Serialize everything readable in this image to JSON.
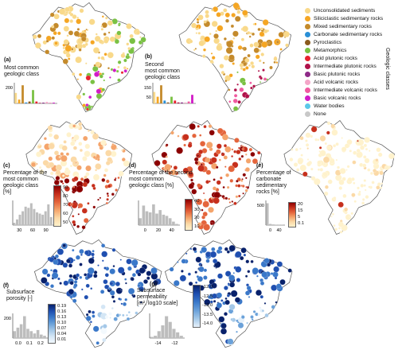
{
  "legend": {
    "title": "Geologic classes",
    "items": [
      {
        "label": "Unconsolidated sediments",
        "color": "#f9d98a"
      },
      {
        "label": "Siliciclastic sedimentary rocks",
        "color": "#f5a623"
      },
      {
        "label": "Mixed sedimentary rocks",
        "color": "#c48a2b"
      },
      {
        "label": "Carbonate sedimentary rocks",
        "color": "#2a8fd6"
      },
      {
        "label": "Pyroclastics",
        "color": "#8a5a1e"
      },
      {
        "label": "Metamorphics",
        "color": "#7ac143"
      },
      {
        "label": "Acid plutonic rocks",
        "color": "#e8222f"
      },
      {
        "label": "Intermediate plutonic rocks",
        "color": "#b0124a"
      },
      {
        "label": "Basic plutonic rocks",
        "color": "#8e2b88"
      },
      {
        "label": "Acid volcanic rocks",
        "color": "#f4a6c8"
      },
      {
        "label": "Intermediate volcanic rocks",
        "color": "#f05aa0"
      },
      {
        "label": "Basic volcanic rocks",
        "color": "#d21bc7"
      },
      {
        "label": "Water bodies",
        "color": "#5bc8e8"
      },
      {
        "label": "None",
        "color": "#c8c8c8"
      }
    ]
  },
  "panels": {
    "a": {
      "tag": "(a)",
      "text": "Most common\ngeologic class"
    },
    "b": {
      "tag": "(b)",
      "text": "Second\nmost common\ngeologic class"
    },
    "c": {
      "tag": "(c)",
      "text": "Percentage of the\nmost common\ngeologic class\n[%]"
    },
    "d": {
      "tag": "(d)",
      "text": "Percentage of the second\nmost common\ngeologic class [%]"
    },
    "e": {
      "tag": "(e)",
      "text": "Percentage of\ncarbonate\nsedimentary\nrocks [%]"
    },
    "f": {
      "tag": "(f)",
      "text": "Subsurface\nporosity [-]"
    },
    "g": {
      "tag": "(g)",
      "text": "Subsurface\npermeability\n[m², log10 scale]"
    }
  },
  "colorbars": {
    "c": {
      "ticks": [
        "90",
        "80",
        "70",
        "60",
        "50"
      ],
      "colors": [
        "#8b0000",
        "#c62f1c",
        "#e4653c",
        "#f4a46b",
        "#fbd9a6",
        "#fff2cc"
      ]
    },
    "d": {
      "ticks": [
        "40",
        "30",
        "20",
        "10"
      ],
      "colors": [
        "#8b0000",
        "#c62f1c",
        "#e4653c",
        "#f4a46b",
        "#fbd9a6",
        "#fff2cc"
      ]
    },
    "e": {
      "ticks": [
        "20",
        "15",
        "5",
        "0.1"
      ],
      "colors": [
        "#8b0000",
        "#c62f1c",
        "#e4653c",
        "#f4a46b",
        "#fbd9a6",
        "#fff2cc"
      ]
    },
    "f": {
      "ticks": [
        "0.19",
        "0.16",
        "0.13",
        "0.10",
        "0.07",
        "0.04",
        "0.01"
      ],
      "colors": [
        "#08216b",
        "#1f4fb0",
        "#3a78c9",
        "#6aa1d9",
        "#a4c8e8",
        "#d4e6f5",
        "#f3f9fd"
      ]
    },
    "g": {
      "ticks": [
        "-12.0",
        "-12.5",
        "-13.0",
        "-13.5",
        "-14.0"
      ],
      "colors": [
        "#08216b",
        "#1f4fb0",
        "#3a78c9",
        "#6aa1d9",
        "#a4c8e8",
        "#e6f1fb"
      ]
    }
  },
  "histograms": {
    "a": {
      "ytick": "200",
      "bars": [
        0.55,
        0.2,
        0.95,
        0.05,
        0.1,
        0.7,
        0.1,
        0.03,
        0.04,
        0.08,
        0.03,
        0.04
      ],
      "colors": [
        "#f9d98a",
        "#f5a623",
        "#c48a2b",
        "#2a8fd6",
        "#8a5a1e",
        "#7ac143",
        "#e8222f",
        "#b0124a",
        "#8e2b88",
        "#f4a6c8",
        "#f05aa0",
        "#d21bc7"
      ]
    },
    "b": {
      "ytick": "150",
      "ytick2": "50",
      "bars": [
        0.6,
        0.35,
        0.95,
        0.15,
        0.05,
        0.35,
        0.15,
        0.05,
        0.05,
        0.05,
        0.1,
        0.45
      ],
      "colors": [
        "#f9d98a",
        "#f5a623",
        "#c48a2b",
        "#2a8fd6",
        "#8a5a1e",
        "#7ac143",
        "#e8222f",
        "#b0124a",
        "#8e2b88",
        "#f4a6c8",
        "#f05aa0",
        "#d21bc7"
      ]
    },
    "c": {
      "xticks": [
        "30",
        "60",
        "90"
      ],
      "bars": [
        0.1,
        0.25,
        0.45,
        0.6,
        0.8,
        0.75,
        0.95,
        0.7,
        0.55,
        0.5,
        0.45,
        0.6,
        0.9,
        0.35
      ]
    },
    "d": {
      "xticks": [
        "0",
        "20",
        "40"
      ],
      "bars": [
        0.3,
        0.85,
        0.6,
        0.55,
        0.9,
        0.5,
        0.65,
        0.45,
        0.4,
        0.3,
        0.15,
        0.05
      ]
    },
    "e": {
      "ytick": "500",
      "xticks": [
        "0",
        "40"
      ],
      "bars": [
        0.95,
        0.05,
        0.03,
        0.02,
        0.01,
        0.01
      ]
    },
    "f": {
      "ytick": "200",
      "xticks": [
        "0.0",
        "0.1",
        "0.2"
      ],
      "bars": [
        0.3,
        0.45,
        0.6,
        0.95,
        0.4,
        0.3,
        0.2,
        0.35,
        0.15,
        0.1
      ]
    },
    "g": {
      "xticks": [
        "-14",
        "-12"
      ],
      "bars": [
        0.05,
        0.1,
        0.3,
        0.55,
        0.95,
        0.7,
        0.4,
        0.25,
        0.1
      ]
    }
  }
}
